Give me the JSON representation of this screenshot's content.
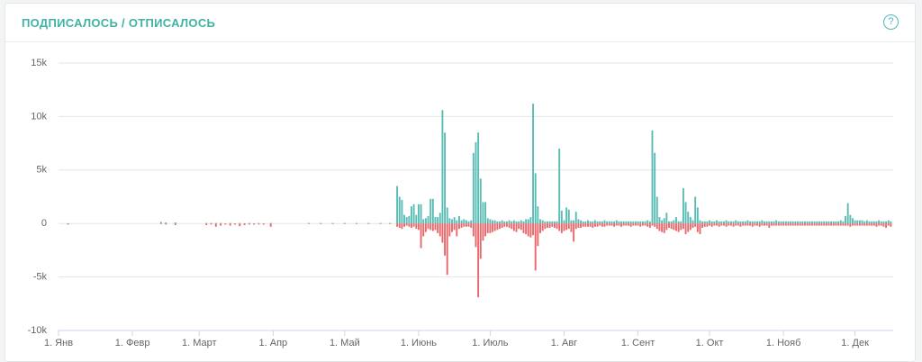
{
  "header": {
    "title": "ПОДПИСАЛОСЬ / ОТПИСАЛОСЬ",
    "help": "?"
  },
  "chart_data": {
    "type": "bar",
    "xlim": [
      0,
      350
    ],
    "ylim": [
      -10000,
      15000
    ],
    "yticks": [
      {
        "value": 15000,
        "label": "15k"
      },
      {
        "value": 10000,
        "label": "10k"
      },
      {
        "value": 5000,
        "label": "5k"
      },
      0,
      {
        "value": -5000,
        "label": "-5k"
      },
      {
        "value": -10000,
        "label": "-10k"
      }
    ],
    "xticks": [
      {
        "value": 0,
        "label": "1. Янв"
      },
      {
        "value": 31,
        "label": "1. Февр"
      },
      {
        "value": 59,
        "label": "1. Март"
      },
      {
        "value": 90,
        "label": "1. Апр"
      },
      {
        "value": 120,
        "label": "1. Май"
      },
      {
        "value": 151,
        "label": "1. Июнь"
      },
      {
        "value": 181,
        "label": "1. Июль"
      },
      {
        "value": 212,
        "label": "1. Авг"
      },
      {
        "value": 243,
        "label": "1. Сент"
      },
      {
        "value": 273,
        "label": "1. Окт"
      },
      {
        "value": 304,
        "label": "1. Нояб"
      },
      {
        "value": 334,
        "label": "1. Дек"
      }
    ],
    "grid": true,
    "x": [
      4,
      43,
      45,
      49,
      62,
      64,
      66,
      68,
      70,
      72,
      74,
      76,
      78,
      80,
      82,
      84,
      86,
      89,
      105,
      110,
      115,
      120,
      125,
      130,
      135,
      139,
      142,
      143,
      144,
      145,
      146,
      147,
      148,
      149,
      150,
      151,
      152,
      153,
      154,
      155,
      156,
      157,
      158,
      159,
      160,
      161,
      162,
      163,
      164,
      165,
      166,
      167,
      168,
      169,
      170,
      171,
      172,
      173,
      174,
      175,
      176,
      177,
      178,
      179,
      180,
      181,
      182,
      183,
      184,
      185,
      186,
      187,
      188,
      189,
      190,
      191,
      192,
      193,
      194,
      195,
      196,
      197,
      198,
      199,
      200,
      201,
      202,
      203,
      204,
      205,
      206,
      207,
      208,
      209,
      210,
      211,
      212,
      213,
      214,
      215,
      216,
      217,
      218,
      219,
      220,
      221,
      222,
      223,
      224,
      225,
      226,
      227,
      228,
      229,
      230,
      231,
      232,
      233,
      234,
      235,
      236,
      237,
      238,
      239,
      240,
      241,
      242,
      243,
      244,
      245,
      246,
      247,
      248,
      249,
      250,
      251,
      252,
      253,
      254,
      255,
      256,
      257,
      258,
      259,
      260,
      261,
      262,
      263,
      264,
      265,
      266,
      267,
      268,
      269,
      270,
      271,
      272,
      273,
      274,
      275,
      276,
      277,
      278,
      279,
      280,
      281,
      282,
      283,
      284,
      285,
      286,
      287,
      288,
      289,
      290,
      291,
      292,
      293,
      294,
      295,
      296,
      297,
      298,
      299,
      300,
      301,
      302,
      303,
      304,
      305,
      306,
      307,
      308,
      309,
      310,
      311,
      312,
      313,
      314,
      315,
      316,
      317,
      318,
      319,
      320,
      321,
      322,
      323,
      324,
      325,
      326,
      327,
      328,
      329,
      330,
      331,
      332,
      333,
      334,
      335,
      336,
      337,
      338,
      339,
      340,
      341,
      342,
      343,
      344,
      345,
      346,
      347,
      348,
      349
    ],
    "series": [
      {
        "color": "#5bbcb5",
        "values": [
          0,
          150,
          100,
          100,
          50,
          50,
          50,
          50,
          0,
          50,
          0,
          50,
          0,
          50,
          0,
          50,
          0,
          50,
          50,
          50,
          50,
          50,
          50,
          50,
          50,
          50,
          3500,
          2500,
          2200,
          800,
          600,
          700,
          1600,
          1800,
          800,
          1800,
          1800,
          400,
          500,
          700,
          2300,
          2300,
          600,
          600,
          1000,
          10600,
          8500,
          1500,
          500,
          400,
          600,
          300,
          700,
          300,
          400,
          300,
          200,
          300,
          6600,
          7600,
          8500,
          4200,
          2000,
          2000,
          500,
          400,
          300,
          300,
          200,
          200,
          300,
          200,
          200,
          300,
          200,
          300,
          200,
          200,
          300,
          200,
          400,
          400,
          600,
          11200,
          4700,
          1600,
          400,
          300,
          200,
          200,
          200,
          200,
          200,
          200,
          7000,
          1200,
          300,
          1500,
          1300,
          300,
          300,
          1100,
          400,
          300,
          200,
          200,
          300,
          200,
          200,
          300,
          200,
          200,
          200,
          300,
          200,
          200,
          200,
          200,
          300,
          200,
          200,
          200,
          200,
          200,
          200,
          200,
          200,
          200,
          200,
          200,
          200,
          300,
          200,
          8700,
          6600,
          2500,
          600,
          300,
          500,
          1000,
          200,
          200,
          300,
          600,
          200,
          200,
          3300,
          2000,
          1100,
          600,
          300,
          2500,
          1500,
          300,
          200,
          200,
          200,
          300,
          200,
          200,
          300,
          200,
          200,
          200,
          300,
          200,
          200,
          200,
          300,
          200,
          200,
          200,
          200,
          300,
          200,
          200,
          200,
          200,
          200,
          300,
          200,
          200,
          200,
          200,
          200,
          300,
          200,
          200,
          200,
          200,
          200,
          200,
          200,
          200,
          200,
          200,
          200,
          200,
          200,
          200,
          200,
          200,
          200,
          200,
          200,
          200,
          200,
          200,
          200,
          200,
          200,
          200,
          300,
          200,
          700,
          1900,
          800,
          500,
          300,
          300,
          300,
          300,
          200,
          300,
          200,
          200,
          200,
          200,
          300,
          200,
          200,
          200,
          300,
          200
        ]
      },
      {
        "color": "#e8686c",
        "values": [
          -100,
          -50,
          -100,
          -150,
          -150,
          -100,
          -300,
          -200,
          -100,
          -200,
          -100,
          -250,
          -150,
          -100,
          -100,
          -100,
          -100,
          -300,
          -50,
          -50,
          -50,
          -50,
          -50,
          -50,
          -50,
          -50,
          -300,
          -400,
          -500,
          -300,
          -200,
          -300,
          -400,
          -300,
          -500,
          -600,
          -2300,
          -1200,
          -800,
          -500,
          -600,
          -700,
          -600,
          -900,
          -1200,
          -1800,
          -3000,
          -4800,
          -1200,
          -800,
          -600,
          -1200,
          -500,
          -400,
          -300,
          -300,
          -300,
          -400,
          -1200,
          -2200,
          -6900,
          -3300,
          -1600,
          -1200,
          -900,
          -900,
          -800,
          -700,
          -600,
          -500,
          -400,
          -300,
          -300,
          -400,
          -500,
          -700,
          -800,
          -500,
          -600,
          -900,
          -1000,
          -1200,
          -1300,
          -1100,
          -4400,
          -2100,
          -900,
          -700,
          -500,
          -400,
          -400,
          -300,
          -400,
          -500,
          -700,
          -900,
          -700,
          -600,
          -500,
          -800,
          -1700,
          -500,
          -400,
          -400,
          -300,
          -300,
          -300,
          -300,
          -400,
          -300,
          -300,
          -200,
          -300,
          -300,
          -200,
          -200,
          -200,
          -300,
          -200,
          -200,
          -300,
          -200,
          -200,
          -200,
          -300,
          -200,
          -200,
          -200,
          -300,
          -200,
          -200,
          -300,
          -400,
          -200,
          -300,
          -500,
          -700,
          -800,
          -900,
          -600,
          -400,
          -500,
          -600,
          -700,
          -800,
          -600,
          -500,
          -1000,
          -800,
          -600,
          -400,
          -300,
          -800,
          -1000,
          -400,
          -300,
          -300,
          -200,
          -300,
          -200,
          -200,
          -300,
          -200,
          -200,
          -300,
          -200,
          -200,
          -300,
          -200,
          -200,
          -300,
          -200,
          -200,
          -200,
          -200,
          -300,
          -200,
          -200,
          -300,
          -200,
          -200,
          -200,
          -400,
          -200,
          -200,
          -200,
          -200,
          -200,
          -200,
          -200,
          -200,
          -200,
          -200,
          -200,
          -200,
          -200,
          -200,
          -200,
          -200,
          -200,
          -200,
          -200,
          -200,
          -200,
          -200,
          -200,
          -200,
          -200,
          -200,
          -200,
          -200,
          -200,
          -200,
          -200,
          -200,
          -200,
          -300,
          -200,
          -200,
          -200,
          -200,
          -200,
          -200,
          -200,
          -200,
          -200,
          -200,
          -300,
          -200,
          -200,
          -300,
          -400,
          -200,
          -300
        ]
      }
    ]
  }
}
